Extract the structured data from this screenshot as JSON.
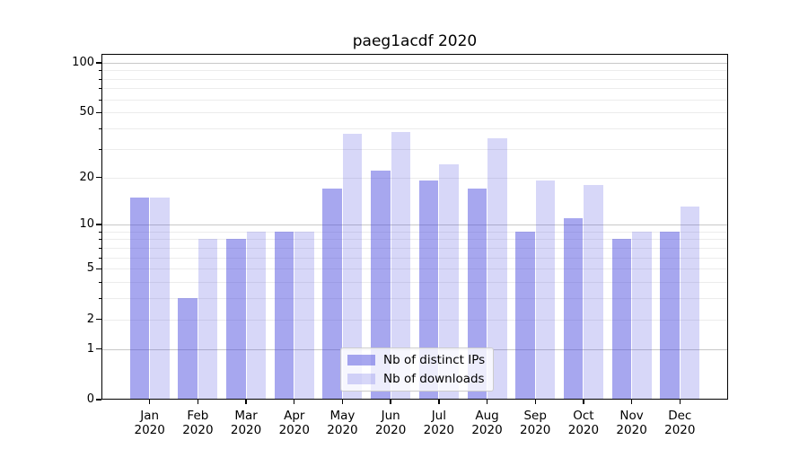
{
  "chart_data": {
    "type": "bar",
    "title": "paeg1acdf 2020",
    "categories": [
      "Jan",
      "Feb",
      "Mar",
      "Apr",
      "May",
      "Jun",
      "Jul",
      "Aug",
      "Sep",
      "Oct",
      "Nov",
      "Dec"
    ],
    "year_label": "2020",
    "series": [
      {
        "name": "Nb of distinct IPs",
        "color": "rgba(68,68,221,0.47)",
        "values": [
          15,
          3,
          8,
          9,
          17,
          22,
          19,
          17,
          9,
          11,
          8,
          9
        ]
      },
      {
        "name": "Nb of downloads",
        "color": "rgba(68,68,221,0.21)",
        "values": [
          15,
          8,
          9,
          9,
          37,
          38,
          24,
          35,
          19,
          18,
          9,
          13
        ]
      }
    ],
    "xlabel": "",
    "ylabel": "",
    "yscale": "log1p",
    "ylim": [
      0,
      113
    ],
    "yticks_labeled": [
      0,
      1,
      2,
      5,
      10,
      20,
      50,
      100
    ],
    "gridlines_major": [
      1,
      10,
      100
    ],
    "gridlines_minor": [
      2,
      3,
      4,
      5,
      6,
      7,
      8,
      9,
      20,
      30,
      40,
      50,
      60,
      70,
      80,
      90
    ],
    "grid_major_color": "#c8c8c8",
    "grid_minor_color": "#ececec",
    "bar_colors": {
      "distinct_ips": "#a8a8ee",
      "downloads": "#d8d8f8"
    },
    "legend_position": "lower center",
    "grid": "on"
  }
}
